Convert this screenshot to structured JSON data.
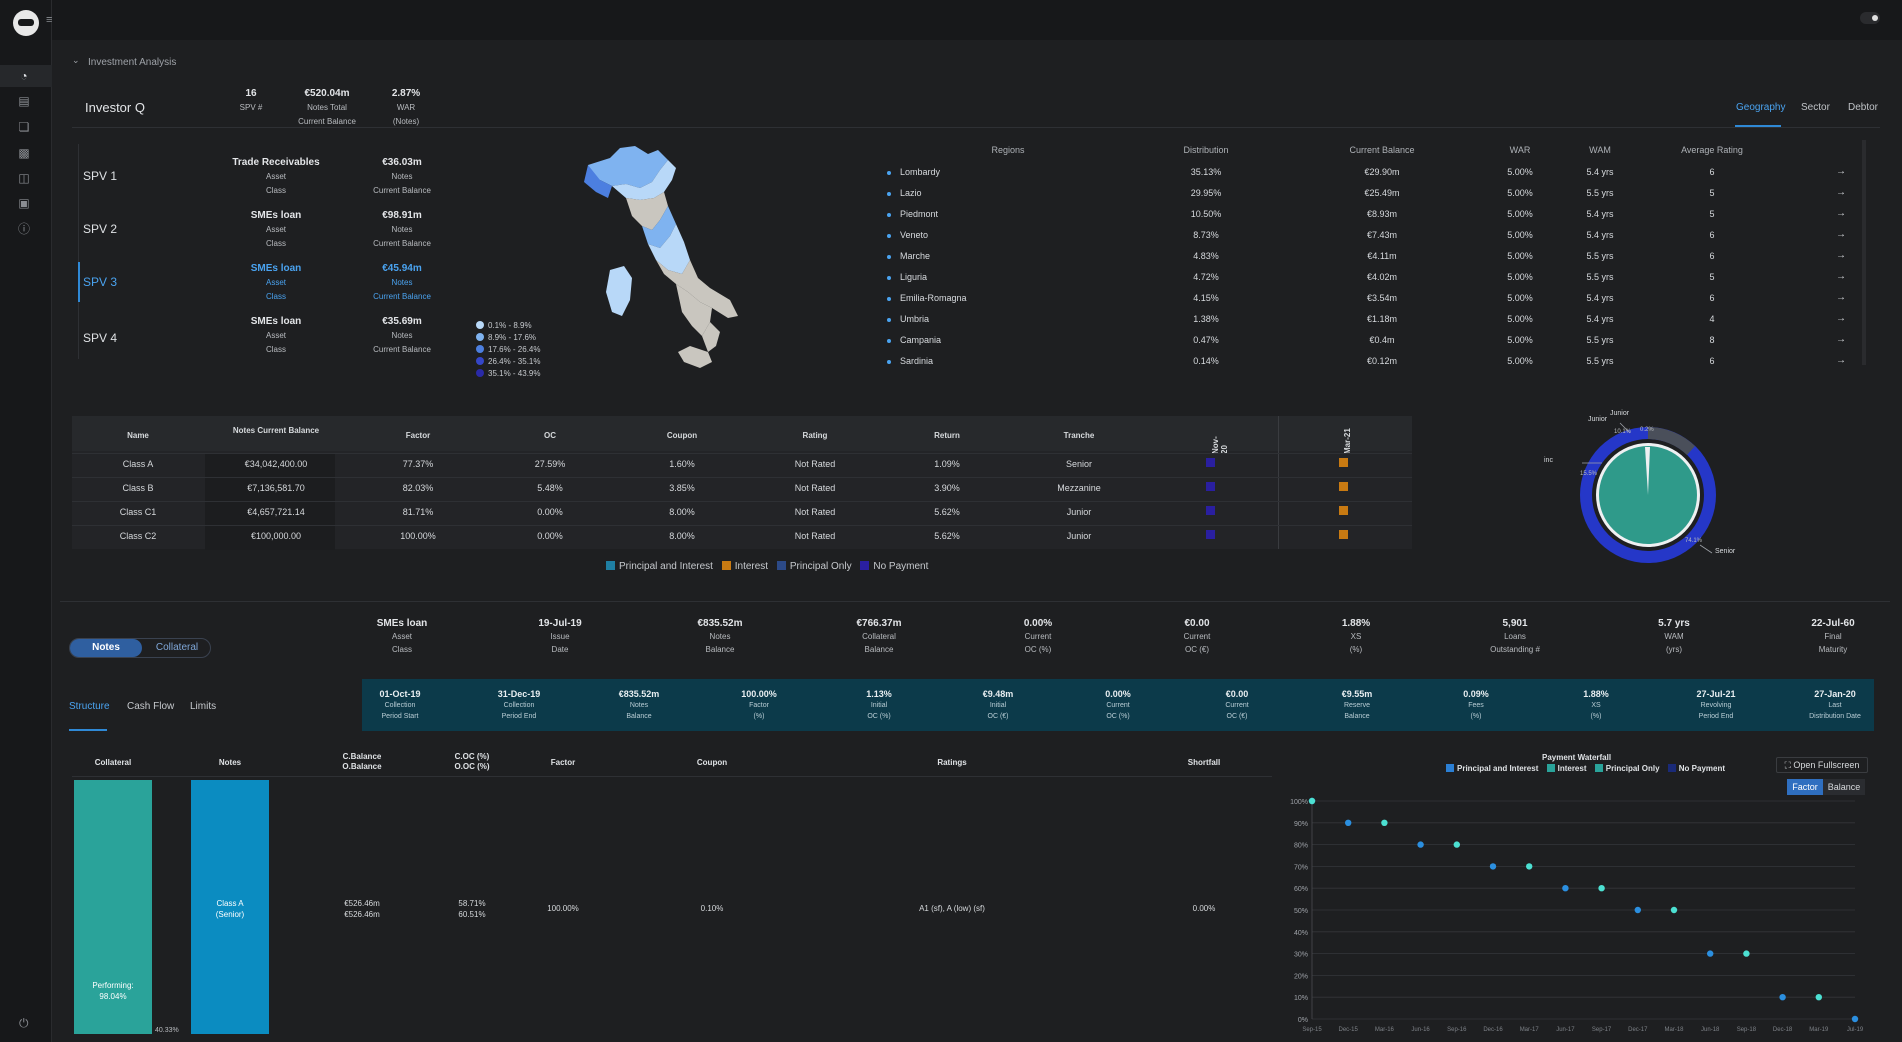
{
  "header": {
    "section_title": "Investment Analysis"
  },
  "investor": {
    "name": "Investor Q",
    "stats": [
      {
        "value": "16",
        "l1": "SPV #",
        "l2": ""
      },
      {
        "value": "€520.04m",
        "l1": "Notes Total",
        "l2": "Current Balance"
      },
      {
        "value": "2.87%",
        "l1": "WAR",
        "l2": "(Notes)"
      }
    ]
  },
  "view_tabs": [
    "Geography",
    "Sector",
    "Debtor"
  ],
  "spvs": [
    {
      "name": "SPV 1",
      "asset": "Trade Receivables",
      "a1": "Asset",
      "a2": "Class",
      "value": "€36.03m",
      "v1": "Notes",
      "v2": "Current Balance"
    },
    {
      "name": "SPV 2",
      "asset": "SMEs loan",
      "a1": "Asset",
      "a2": "Class",
      "value": "€98.91m",
      "v1": "Notes",
      "v2": "Current Balance"
    },
    {
      "name": "SPV 3",
      "asset": "SMEs loan",
      "a1": "Asset",
      "a2": "Class",
      "value": "€45.94m",
      "v1": "Notes",
      "v2": "Current Balance"
    },
    {
      "name": "SPV 4",
      "asset": "SMEs loan",
      "a1": "Asset",
      "a2": "Class",
      "value": "€35.69m",
      "v1": "Notes",
      "v2": "Current Balance"
    }
  ],
  "map_legend": [
    {
      "label": "0.1% - 8.9%",
      "color": "#b8d8f8"
    },
    {
      "label": "8.9% - 17.6%",
      "color": "#7fb3f0"
    },
    {
      "label": "17.6% - 26.4%",
      "color": "#4c7fe0"
    },
    {
      "label": "26.4% - 35.1%",
      "color": "#3546c8"
    },
    {
      "label": "35.1% - 43.9%",
      "color": "#2a2aa8"
    }
  ],
  "regions": {
    "headers": [
      "Regions",
      "Distribution",
      "Current Balance",
      "WAR",
      "WAM",
      "Average Rating"
    ],
    "rows": [
      {
        "name": "Lombardy",
        "dist": "35.13%",
        "bal": "€29.90m",
        "war": "5.00%",
        "wam": "5.4 yrs",
        "rating": "6"
      },
      {
        "name": "Lazio",
        "dist": "29.95%",
        "bal": "€25.49m",
        "war": "5.00%",
        "wam": "5.5 yrs",
        "rating": "5"
      },
      {
        "name": "Piedmont",
        "dist": "10.50%",
        "bal": "€8.93m",
        "war": "5.00%",
        "wam": "5.4 yrs",
        "rating": "5"
      },
      {
        "name": "Veneto",
        "dist": "8.73%",
        "bal": "€7.43m",
        "war": "5.00%",
        "wam": "5.4 yrs",
        "rating": "6"
      },
      {
        "name": "Marche",
        "dist": "4.83%",
        "bal": "€4.11m",
        "war": "5.00%",
        "wam": "5.5 yrs",
        "rating": "6"
      },
      {
        "name": "Liguria",
        "dist": "4.72%",
        "bal": "€4.02m",
        "war": "5.00%",
        "wam": "5.5 yrs",
        "rating": "5"
      },
      {
        "name": "Emilia-Romagna",
        "dist": "4.15%",
        "bal": "€3.54m",
        "war": "5.00%",
        "wam": "5.4 yrs",
        "rating": "6"
      },
      {
        "name": "Umbria",
        "dist": "1.38%",
        "bal": "€1.18m",
        "war": "5.00%",
        "wam": "5.4 yrs",
        "rating": "4"
      },
      {
        "name": "Campania",
        "dist": "0.47%",
        "bal": "€0.4m",
        "war": "5.00%",
        "wam": "5.5 yrs",
        "rating": "8"
      },
      {
        "name": "Sardinia",
        "dist": "0.14%",
        "bal": "€0.12m",
        "war": "5.00%",
        "wam": "5.5 yrs",
        "rating": "6"
      }
    ]
  },
  "notes_table": {
    "headers": [
      "Name",
      "Notes Current Balance",
      "Factor",
      "OC",
      "Coupon",
      "Rating",
      "Return",
      "Tranche",
      "Nov-20",
      "Mar-21"
    ],
    "rows": [
      {
        "name": "Class A",
        "bal": "€34,042,400.00",
        "factor": "77.37%",
        "oc": "27.59%",
        "coupon": "1.60%",
        "rating": "Not Rated",
        "ret": "1.09%",
        "tranche": "Senior"
      },
      {
        "name": "Class B",
        "bal": "€7,136,581.70",
        "factor": "82.03%",
        "oc": "5.48%",
        "coupon": "3.85%",
        "rating": "Not Rated",
        "ret": "3.90%",
        "tranche": "Mezzanine"
      },
      {
        "name": "Class C1",
        "bal": "€4,657,721.14",
        "factor": "81.71%",
        "oc": "0.00%",
        "coupon": "8.00%",
        "rating": "Not Rated",
        "ret": "5.62%",
        "tranche": "Junior"
      },
      {
        "name": "Class C2",
        "bal": "€100,000.00",
        "factor": "100.00%",
        "oc": "0.00%",
        "coupon": "8.00%",
        "rating": "Not Rated",
        "ret": "5.62%",
        "tranche": "Junior"
      }
    ],
    "legend": [
      {
        "label": "Principal and Interest",
        "color": "#1f7fa3"
      },
      {
        "label": "Interest",
        "color": "#c87a12"
      },
      {
        "label": "Principal Only",
        "color": "#2c4a88"
      },
      {
        "label": "No Payment",
        "color": "#2a1fa0"
      }
    ]
  },
  "donut": {
    "labels": [
      "Junior",
      "Junior",
      "Senior",
      "inc"
    ],
    "outer_pct": [
      "74.1%",
      "15.5%",
      "10.1%",
      "0.2%"
    ]
  },
  "toggle": {
    "on": "Notes",
    "off": "Collateral"
  },
  "bottom_stats": [
    {
      "value": "SMEs loan",
      "l1": "Asset",
      "l2": "Class"
    },
    {
      "value": "19-Jul-19",
      "l1": "Issue",
      "l2": "Date"
    },
    {
      "value": "€835.52m",
      "l1": "Notes",
      "l2": "Balance"
    },
    {
      "value": "€766.37m",
      "l1": "Collateral",
      "l2": "Balance"
    },
    {
      "value": "0.00%",
      "l1": "Current",
      "l2": "OC (%)"
    },
    {
      "value": "€0.00",
      "l1": "Current",
      "l2": "OC (€)"
    },
    {
      "value": "1.88%",
      "l1": "XS",
      "l2": "(%)"
    },
    {
      "value": "5,901",
      "l1": "Loans",
      "l2": "Outstanding #"
    },
    {
      "value": "5.7 yrs",
      "l1": "WAM",
      "l2": "(yrs)"
    },
    {
      "value": "22-Jul-60",
      "l1": "Final",
      "l2": "Maturity"
    }
  ],
  "sub_tabs": [
    "Structure",
    "Cash Flow",
    "Limits"
  ],
  "teal_stats": [
    {
      "value": "01-Oct-19",
      "l1": "Collection",
      "l2": "Period Start"
    },
    {
      "value": "31-Dec-19",
      "l1": "Collection",
      "l2": "Period End"
    },
    {
      "value": "€835.52m",
      "l1": "Notes",
      "l2": "Balance"
    },
    {
      "value": "100.00%",
      "l1": "Factor",
      "l2": "(%)"
    },
    {
      "value": "1.13%",
      "l1": "Initial",
      "l2": "OC (%)"
    },
    {
      "value": "€9.48m",
      "l1": "Initial",
      "l2": "OC (€)"
    },
    {
      "value": "0.00%",
      "l1": "Current",
      "l2": "OC (%)"
    },
    {
      "value": "€0.00",
      "l1": "Current",
      "l2": "OC (€)"
    },
    {
      "value": "€9.55m",
      "l1": "Reserve",
      "l2": "Balance"
    },
    {
      "value": "0.09%",
      "l1": "Fees",
      "l2": "(%)"
    },
    {
      "value": "1.88%",
      "l1": "XS",
      "l2": "(%)"
    },
    {
      "value": "27-Jul-21",
      "l1": "Revolving",
      "l2": "Period End"
    },
    {
      "value": "27-Jan-20",
      "l1": "Last",
      "l2": "Distribution Date"
    }
  ],
  "structure": {
    "headers": [
      "Collateral",
      "Notes",
      "C.Balance",
      "O.Balance",
      "C.OC (%)",
      "O.OC (%)",
      "Factor",
      "Coupon",
      "Ratings",
      "Shortfall"
    ],
    "collateral_label": "Performing:",
    "collateral_value": "98.04%",
    "collateral_small": "40.33%",
    "note_label": "Class A",
    "note_sub": "(Senior)",
    "c_balance": "€526.46m",
    "o_balance": "€526.46m",
    "c_oc": "58.71%",
    "o_oc": "60.51%",
    "factor": "100.00%",
    "coupon": "0.10%",
    "ratings": "A1 (sf), A (low) (sf)",
    "shortfall": "0.00%"
  },
  "waterfall": {
    "title": "Payment Waterfall",
    "legend": [
      {
        "label": "Principal and Interest",
        "color": "#2b7fd4"
      },
      {
        "label": "Interest",
        "color": "#2aa39a"
      },
      {
        "label": "Principal Only",
        "color": "#2aa39a"
      },
      {
        "label": "No Payment",
        "color": "#1a2a78"
      }
    ],
    "fullscreen": "Open Fullscreen",
    "factor_btn": "Factor",
    "balance_btn": "Balance"
  },
  "chart_data": {
    "type": "scatter",
    "title": "",
    "ylabel": "",
    "xlabel": "",
    "ylim": [
      0,
      100
    ],
    "yticks": [
      "0%",
      "10%",
      "20%",
      "30%",
      "40%",
      "50%",
      "60%",
      "70%",
      "80%",
      "90%",
      "100%"
    ],
    "xticks": [
      "Sep-15",
      "Dec-15",
      "Mar-16",
      "Jun-16",
      "Sep-16",
      "Dec-16",
      "Mar-17",
      "Jun-17",
      "Sep-17",
      "Dec-17",
      "Mar-18",
      "Jun-18",
      "Sep-18",
      "Dec-18",
      "Mar-19",
      "Jul-19"
    ],
    "series": [
      {
        "color": "#2b8fe0",
        "points": [
          [
            0,
            100
          ],
          [
            1,
            90
          ],
          [
            3,
            80
          ],
          [
            5,
            70
          ],
          [
            7,
            60
          ],
          [
            9,
            50
          ],
          [
            11,
            30
          ],
          [
            13,
            10
          ],
          [
            15,
            0
          ]
        ]
      },
      {
        "color": "#4ce0d2",
        "points": [
          [
            0,
            100
          ],
          [
            2,
            90
          ],
          [
            4,
            80
          ],
          [
            6,
            70
          ],
          [
            8,
            60
          ],
          [
            10,
            50
          ],
          [
            12,
            30
          ],
          [
            14,
            10
          ]
        ]
      }
    ]
  }
}
